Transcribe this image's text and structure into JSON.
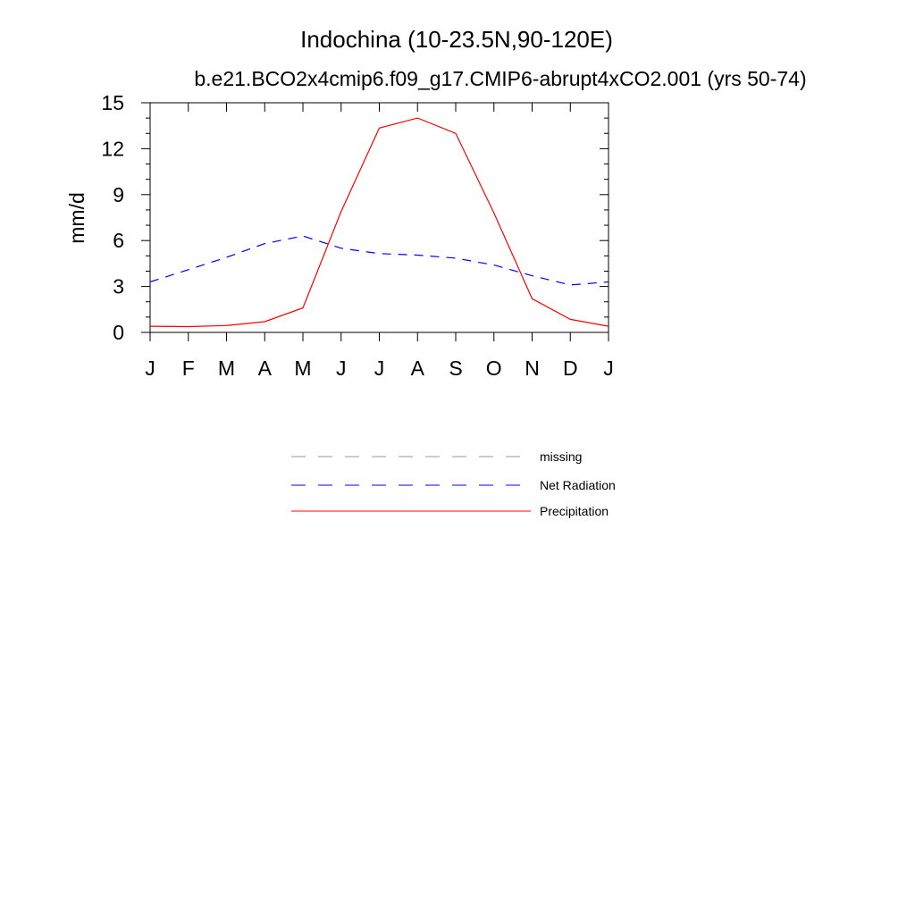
{
  "chart_data": {
    "type": "line",
    "title": "Indochina (10-23.5N,90-120E)",
    "subtitle": "b.e21.BCO2x4cmip6.f09_g17.CMIP6-abrupt4xCO2.001 (yrs 50-74)",
    "xlabel": "",
    "ylabel": "mm/d",
    "categories": [
      "J",
      "F",
      "M",
      "A",
      "M",
      "J",
      "J",
      "A",
      "S",
      "O",
      "N",
      "D",
      "J"
    ],
    "ylim": [
      0,
      15
    ],
    "yticks": [
      0,
      3,
      6,
      9,
      12,
      15
    ],
    "grid": false,
    "legend_position": "bottom",
    "series": [
      {
        "name": "Net Radiation",
        "color": "#0000ff",
        "dash": "dashed",
        "values": [
          3.3,
          4.1,
          4.9,
          5.8,
          6.3,
          5.5,
          5.15,
          5.05,
          4.85,
          4.4,
          3.7,
          3.1,
          3.3
        ]
      },
      {
        "name": "Precipitation",
        "color": "#ff0000",
        "dash": "solid",
        "values": [
          0.4,
          0.38,
          0.45,
          0.7,
          1.6,
          7.9,
          13.35,
          14.0,
          13.0,
          7.8,
          2.2,
          0.85,
          0.4
        ]
      }
    ],
    "legend": [
      {
        "label": "missing",
        "color": "#999999",
        "dash": "dashed"
      },
      {
        "label": "Net Radiation",
        "color": "#0000ff",
        "dash": "dashed"
      },
      {
        "label": "Precipitation",
        "color": "#ff0000",
        "dash": "solid"
      }
    ]
  }
}
